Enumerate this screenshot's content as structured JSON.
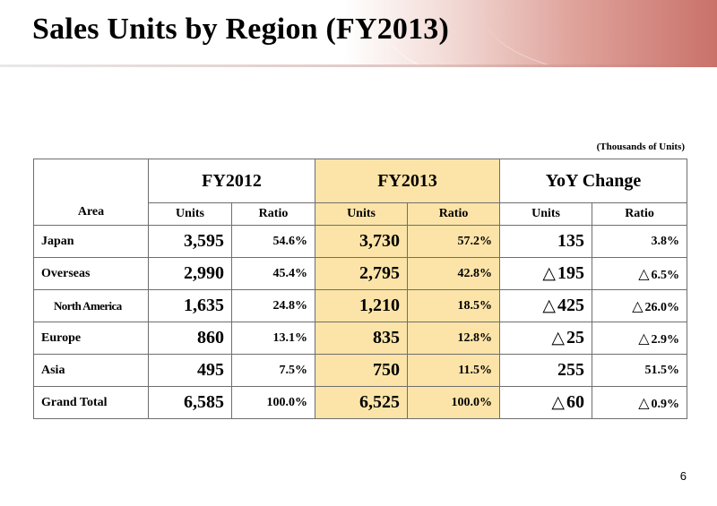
{
  "title": "Sales Units by Region (FY2013)",
  "unit_note": "(Thousands of Units)",
  "page_number": "6",
  "table": {
    "area_header": "Area",
    "groups": [
      "FY2012",
      "FY2013",
      "YoY Change"
    ],
    "sub_headers": [
      "Units",
      "Ratio",
      "Units",
      "Ratio",
      "Units",
      "Ratio"
    ],
    "decrease_symbol": "△",
    "rows": [
      {
        "area": "Japan",
        "sub": false,
        "fy2012_units": "3,595",
        "fy2012_ratio": "54.6%",
        "fy2013_units": "3,730",
        "fy2013_ratio": "57.2%",
        "yoy_units": "135",
        "yoy_units_decrease": false,
        "yoy_ratio": "3.8%",
        "yoy_ratio_decrease": false
      },
      {
        "area": "Overseas",
        "sub": false,
        "fy2012_units": "2,990",
        "fy2012_ratio": "45.4%",
        "fy2013_units": "2,795",
        "fy2013_ratio": "42.8%",
        "yoy_units": "195",
        "yoy_units_decrease": true,
        "yoy_ratio": "6.5%",
        "yoy_ratio_decrease": true
      },
      {
        "area": "North America",
        "sub": true,
        "fy2012_units": "1,635",
        "fy2012_ratio": "24.8%",
        "fy2013_units": "1,210",
        "fy2013_ratio": "18.5%",
        "yoy_units": "425",
        "yoy_units_decrease": true,
        "yoy_ratio": "26.0%",
        "yoy_ratio_decrease": true
      },
      {
        "area": "Europe",
        "sub": false,
        "fy2012_units": "860",
        "fy2012_ratio": "13.1%",
        "fy2013_units": "835",
        "fy2013_ratio": "12.8%",
        "yoy_units": "25",
        "yoy_units_decrease": true,
        "yoy_ratio": "2.9%",
        "yoy_ratio_decrease": true
      },
      {
        "area": "Asia",
        "sub": false,
        "fy2012_units": "495",
        "fy2012_ratio": "7.5%",
        "fy2013_units": "750",
        "fy2013_ratio": "11.5%",
        "yoy_units": "255",
        "yoy_units_decrease": false,
        "yoy_ratio": "51.5%",
        "yoy_ratio_decrease": false
      },
      {
        "area": "Grand Total",
        "sub": false,
        "total": true,
        "fy2012_units": "6,585",
        "fy2012_ratio": "100.0%",
        "fy2013_units": "6,525",
        "fy2013_ratio": "100.0%",
        "yoy_units": "60",
        "yoy_units_decrease": true,
        "yoy_ratio": "0.9%",
        "yoy_ratio_decrease": true
      }
    ]
  },
  "colors": {
    "highlight": "#fce4a8",
    "header_accent": "#c9726a"
  }
}
